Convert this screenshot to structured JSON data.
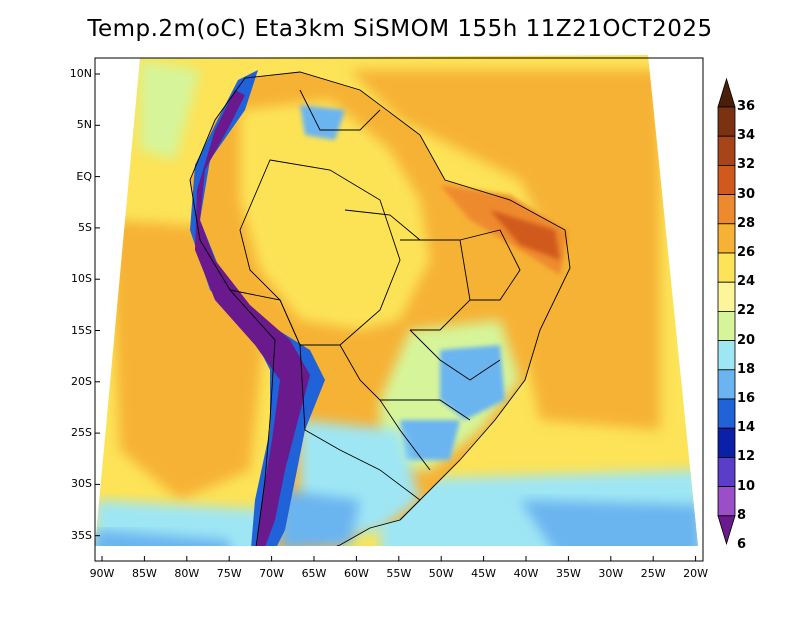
{
  "title": "Temp.2m(oC) Eta3km SiSMOM 155h 11Z21OCT2025",
  "lat_ticks": [
    "10N",
    "5N",
    "EQ",
    "5S",
    "10S",
    "15S",
    "20S",
    "25S",
    "30S",
    "35S"
  ],
  "lon_ticks": [
    "90W",
    "85W",
    "80W",
    "75W",
    "70W",
    "65W",
    "60W",
    "55W",
    "50W",
    "45W",
    "40W",
    "35W",
    "30W",
    "25W",
    "20W"
  ],
  "colorbar": {
    "labels": [
      "36",
      "34",
      "32",
      "30",
      "28",
      "26",
      "24",
      "22",
      "20",
      "18",
      "16",
      "14",
      "12",
      "10",
      "8",
      "6"
    ],
    "colors": [
      "#4a1f0a",
      "#7a3210",
      "#a8441a",
      "#d05a1e",
      "#ee8a2e",
      "#f6b235",
      "#fce357",
      "#fdf59a",
      "#d6f59a",
      "#9fe6f4",
      "#6ab4f0",
      "#2062d8",
      "#0a20a8",
      "#5a3ec8",
      "#9a4ec8",
      "#6a1a8c"
    ]
  },
  "field_colors": {
    "ocean_warm": "#f6b235",
    "ocean_mild": "#fce357",
    "ocean_cool": "#fdf59a",
    "cold_south": "#9fe6f4",
    "andes_cold": "#6a1a8c",
    "andes_mid": "#2062d8",
    "northeast_hot": "#ee8a2e",
    "land_warm": "#f6b235",
    "land_mild": "#fce357",
    "south_cool": "#6ab4f0"
  }
}
